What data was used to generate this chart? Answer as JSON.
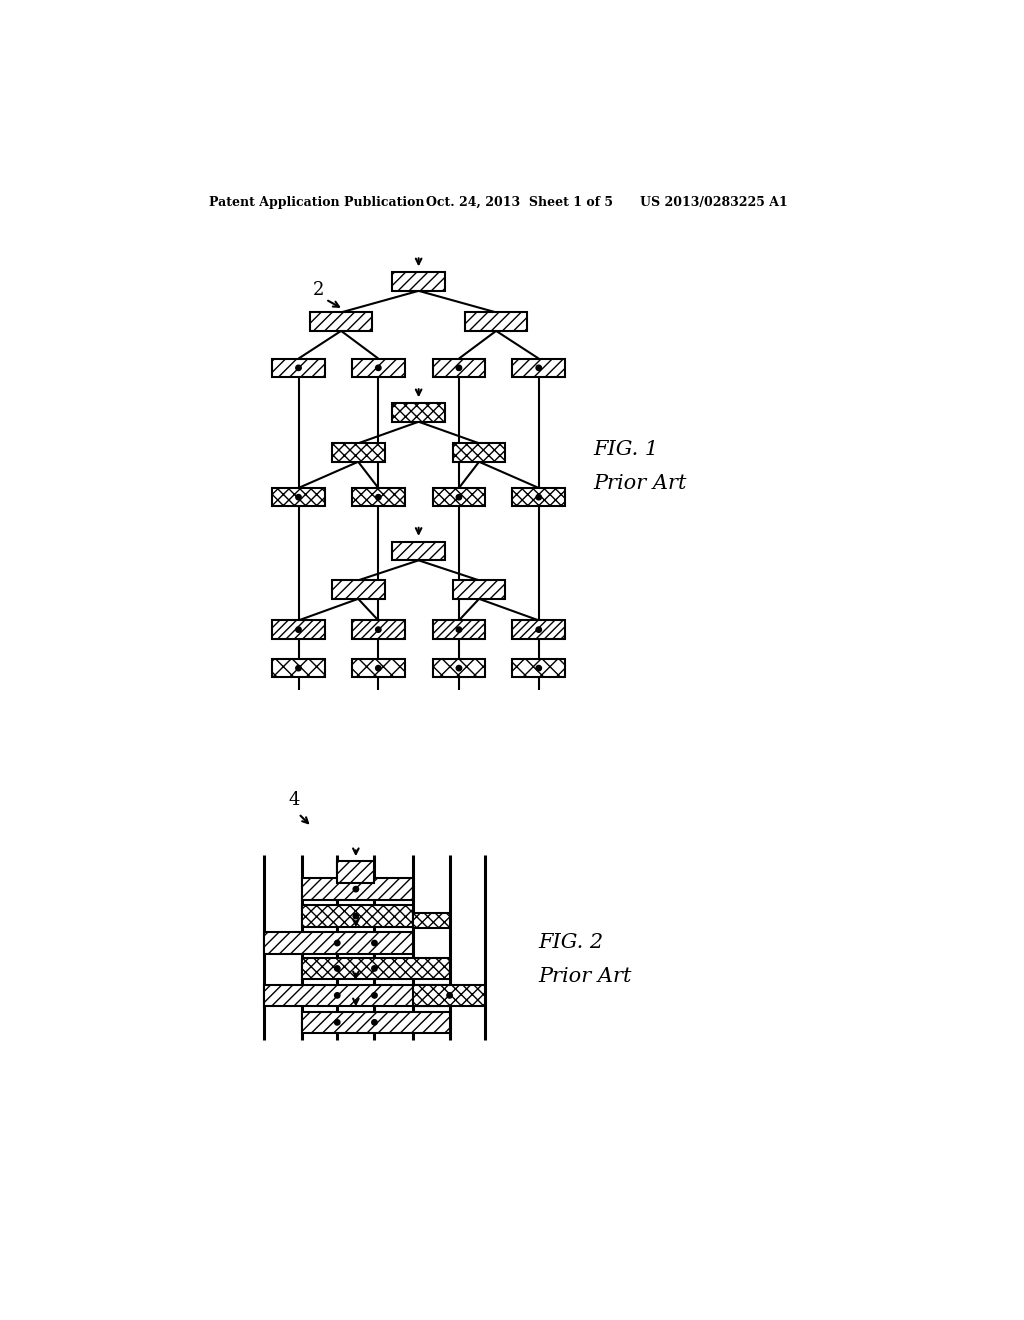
{
  "title_line1": "Patent Application Publication",
  "title_line2": "Oct. 24, 2013  Sheet 1 of 5",
  "title_line3": "US 2013/0283225 A1",
  "fig1_label": "FIG. 1\nPrior Art",
  "fig2_label": "FIG. 2\nPrior Art",
  "label2": "2",
  "label4": "4",
  "bg_color": "#ffffff",
  "line_color": "#000000"
}
